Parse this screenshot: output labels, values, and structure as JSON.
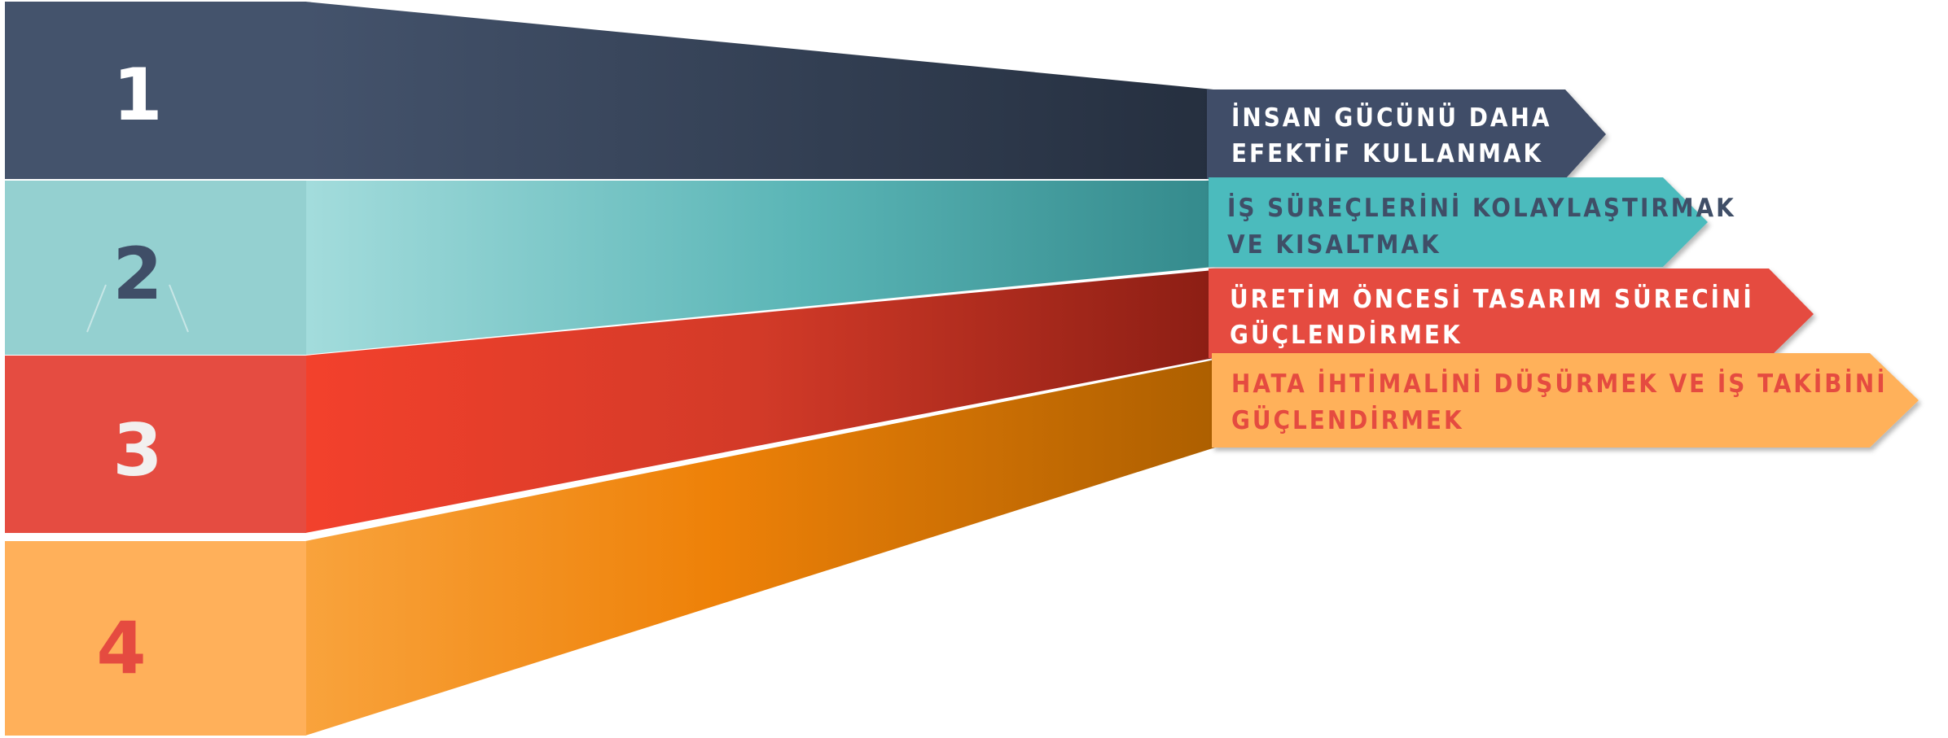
{
  "items": [
    {
      "number": "1",
      "line1": "İNSAN GÜCÜNÜ DAHA",
      "line2": "EFEKTİF KULLANMAK"
    },
    {
      "number": "2",
      "line1": "İŞ SÜREÇLERİNİ KOLAYLAŞTIRMAK",
      "line2": "VE KISALTMAK"
    },
    {
      "number": "3",
      "line1": "ÜRETİM ÖNCESİ TASARIM SÜRECİNİ",
      "line2": "GÜÇLENDİRMEK"
    },
    {
      "number": "4",
      "line1": "HATA İHTİMALİNİ DÜŞÜRMEK VE İŞ TAKİBİNİ",
      "line2": "GÜÇLENDİRMEK"
    }
  ],
  "colors": {
    "navy": "#3f4e67",
    "navy_dark": "#252f3f",
    "teal": "#93cfd0",
    "teal_mid": "#4bbbbd",
    "teal_dark": "#35898c",
    "red": "#e54b40",
    "red_bright": "#f1412d",
    "red_dark": "#8f1f15",
    "orange": "#ffb15a",
    "orange_mid": "#ef8209",
    "orange_dark": "#b06000",
    "white": "#ffffff"
  }
}
